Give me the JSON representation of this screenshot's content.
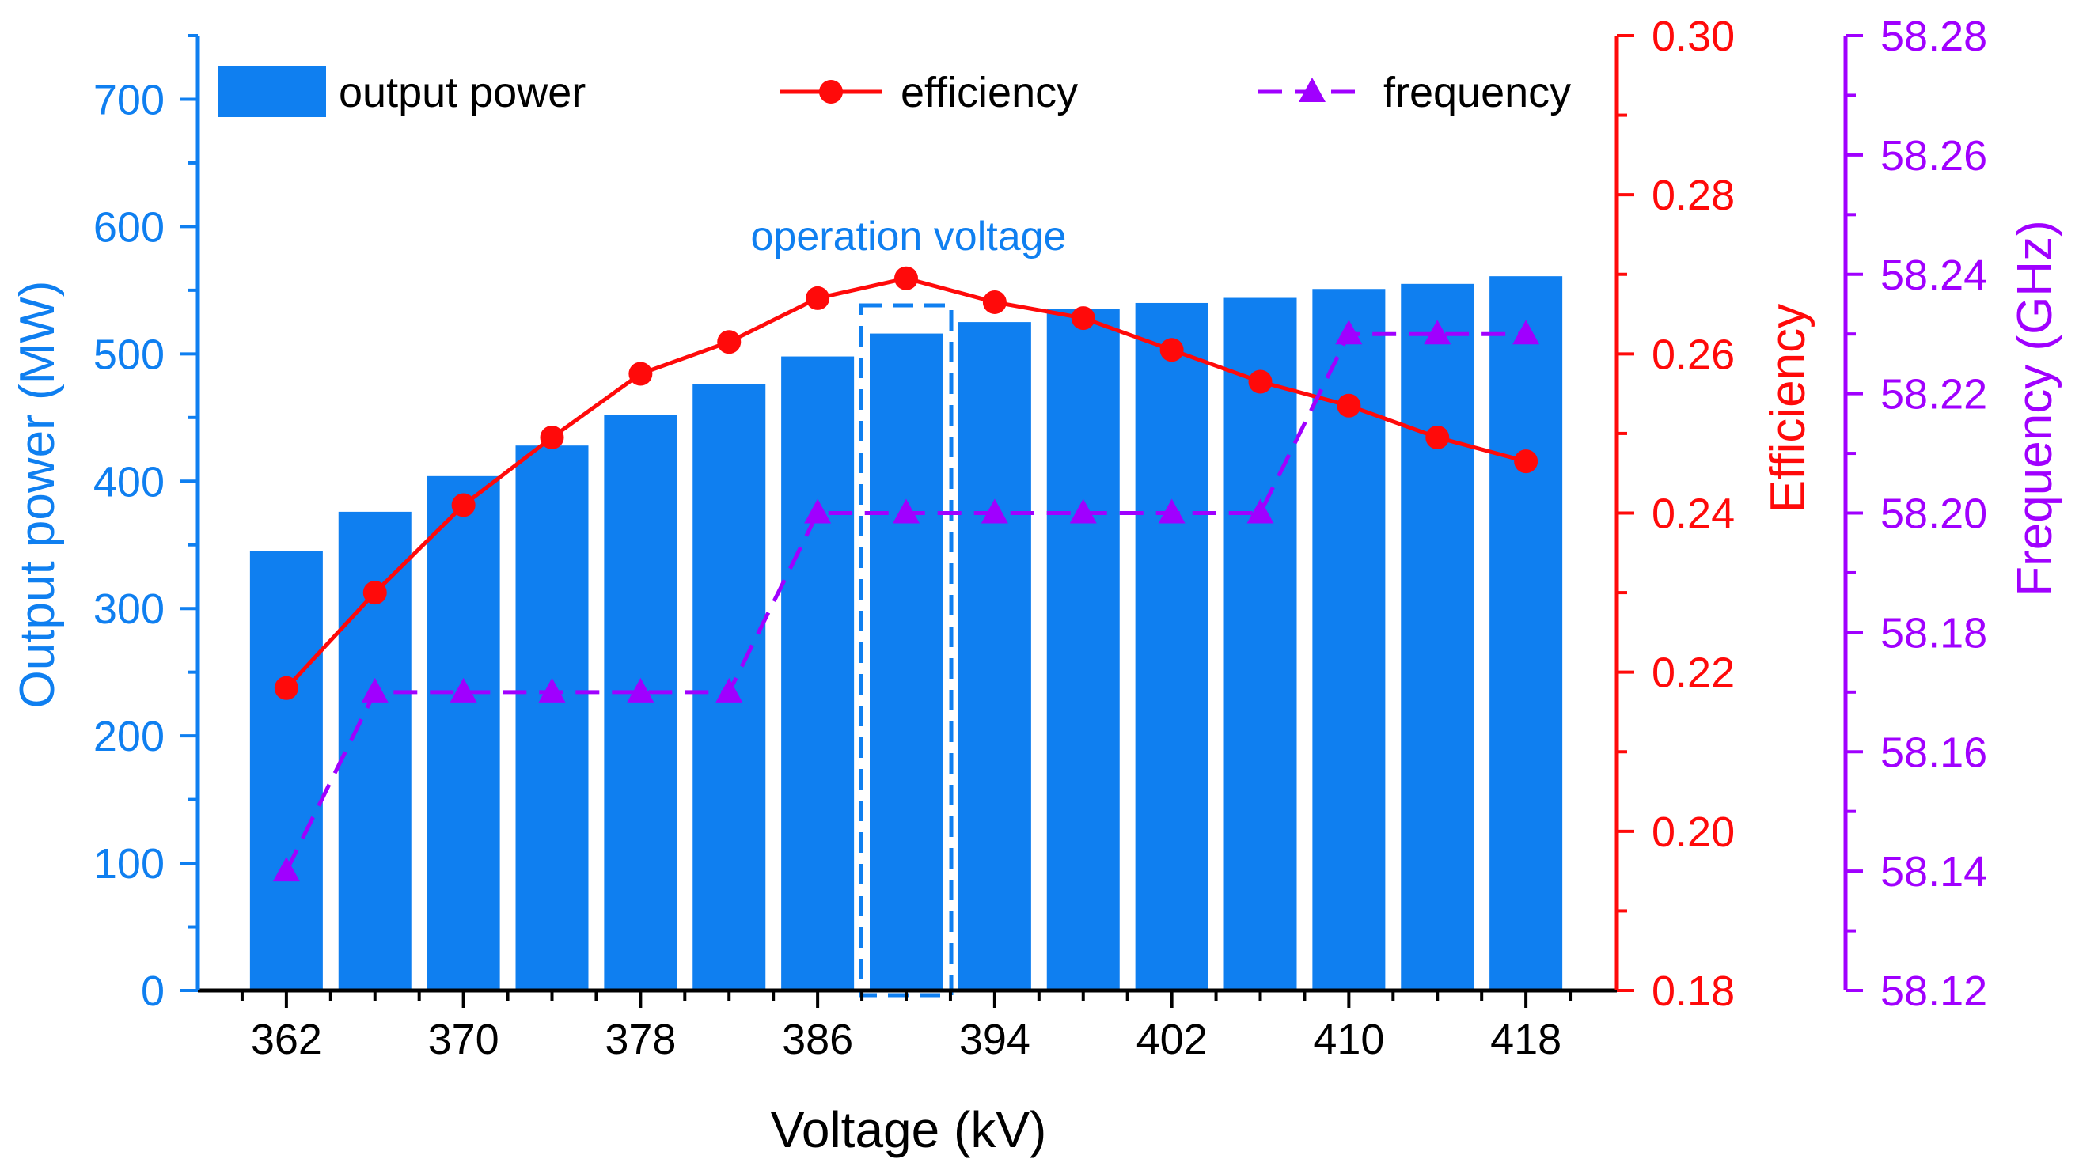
{
  "colors": {
    "power": "#0f7ff0",
    "efficiency": "#ff0a0a",
    "frequency": "#a000ff",
    "axis": "#000000",
    "annotation": "#0f7ff0"
  },
  "chart_data": {
    "type": "bar",
    "x": [
      362,
      366,
      370,
      374,
      378,
      382,
      386,
      390,
      394,
      398,
      402,
      406,
      410,
      414,
      418
    ],
    "xlabel": "Voltage (kV)",
    "xticks": [
      362,
      370,
      378,
      386,
      394,
      402,
      410,
      418
    ],
    "xtick_labels": [
      "362",
      "370",
      "378",
      "386",
      "394",
      "402",
      "410",
      "418"
    ],
    "series": [
      {
        "name": "output power",
        "type": "bar",
        "axis": "left",
        "values": [
          345,
          376,
          404,
          428,
          452,
          476,
          498,
          516,
          525,
          535,
          540,
          544,
          551,
          555,
          561
        ]
      },
      {
        "name": "efficiency",
        "type": "line",
        "marker": "circle",
        "axis": "right",
        "values": [
          0.218,
          0.23,
          0.241,
          0.2495,
          0.2575,
          0.2615,
          0.267,
          0.2695,
          0.2665,
          0.2645,
          0.2605,
          0.2565,
          0.2535,
          0.2495,
          0.2465
        ]
      },
      {
        "name": "frequency",
        "type": "line",
        "marker": "triangle",
        "dash": "dashed",
        "axis": "far-right",
        "values": [
          58.14,
          58.17,
          58.17,
          58.17,
          58.17,
          58.17,
          58.2,
          58.2,
          58.2,
          58.2,
          58.2,
          58.2,
          58.23,
          58.23,
          58.23
        ]
      }
    ],
    "axes": {
      "left": {
        "label": "Output power (MW)",
        "ylim": [
          0,
          750
        ],
        "ticks": [
          0,
          100,
          200,
          300,
          400,
          500,
          600,
          700
        ],
        "tick_labels": [
          "0",
          "100",
          "200",
          "300",
          "400",
          "500",
          "600",
          "700"
        ]
      },
      "right": {
        "label": "Efficiency",
        "ylim": [
          0.18,
          0.3
        ],
        "ticks": [
          0.18,
          0.2,
          0.22,
          0.24,
          0.26,
          0.28,
          0.3
        ],
        "tick_labels": [
          "0.18",
          "0.20",
          "0.22",
          "0.24",
          "0.26",
          "0.28",
          "0.30"
        ]
      },
      "far_right": {
        "label": "Frequency (GHz)",
        "ylim": [
          58.12,
          58.28
        ],
        "ticks": [
          58.12,
          58.14,
          58.16,
          58.18,
          58.2,
          58.22,
          58.24,
          58.26,
          58.28
        ],
        "tick_labels": [
          "58.12",
          "58.14",
          "58.16",
          "58.18",
          "58.20",
          "58.22",
          "58.24",
          "58.26",
          "58.28"
        ]
      }
    },
    "annotation": {
      "text": "operation voltage",
      "highlight_x": 390
    },
    "legend": {
      "placement": "top",
      "entries": [
        "output power",
        "efficiency",
        "frequency"
      ]
    }
  }
}
